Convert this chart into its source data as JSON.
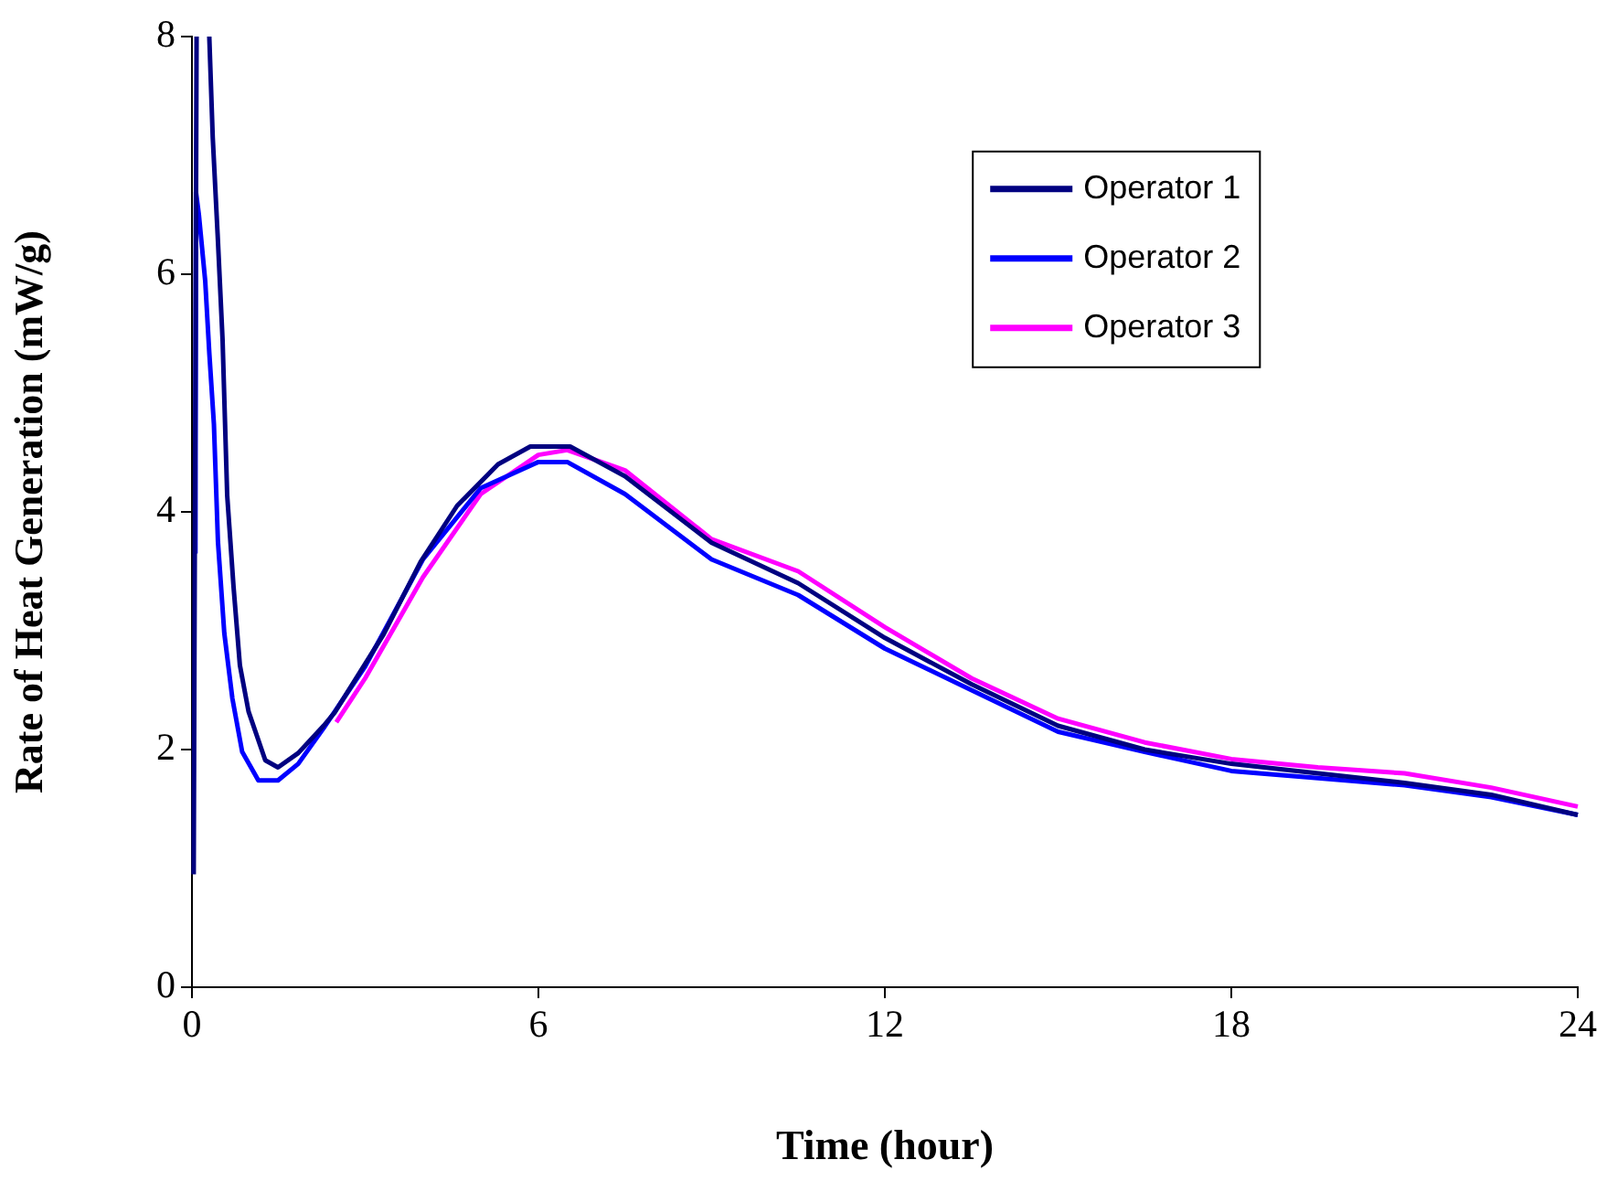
{
  "chart_data": {
    "type": "line",
    "xlabel": "Time (hour)",
    "ylabel": "Rate of Heat Generation (mW/g)",
    "xlim": [
      0,
      24
    ],
    "xticks": [
      0,
      6,
      12,
      18,
      24
    ],
    "ylim": [
      0,
      8
    ],
    "yticks": [
      0,
      2,
      4,
      6,
      8
    ],
    "grid": false,
    "legend": "top right",
    "marker": "none",
    "line_style": "solid",
    "series": [
      {
        "name": "Operator 1",
        "color": "#000080",
        "x": [
          0.03,
          0.08,
          0.2,
          0.3,
          0.36,
          0.45,
          0.53,
          0.61,
          0.72,
          0.83,
          0.98,
          1.27,
          1.49,
          1.84,
          2.28,
          2.47,
          3.32,
          3.96,
          4.59,
          5.3,
          5.86,
          6.55,
          7.5,
          9,
          10.5,
          12,
          13.5,
          15,
          16.5,
          18,
          19.5,
          21,
          22.5,
          24
        ],
        "values": [
          0.95,
          8,
          null,
          8,
          7.15,
          6.28,
          5.45,
          4.14,
          3.37,
          2.71,
          2.32,
          1.91,
          1.85,
          1.97,
          2.2,
          2.31,
          2.97,
          3.58,
          4.05,
          4.4,
          4.55,
          4.55,
          4.3,
          3.74,
          3.4,
          2.94,
          2.55,
          2.2,
          2.0,
          1.88,
          1.8,
          1.72,
          1.62,
          1.45
        ]
      },
      {
        "name": "Operator 2",
        "color": "#0000ff",
        "x": [
          0.06,
          0.07,
          0.12,
          0.23,
          0.3,
          0.38,
          0.45,
          0.56,
          0.7,
          0.87,
          1.15,
          1.49,
          1.84,
          2.28,
          3,
          4,
          5,
          6,
          6.5,
          7.5,
          9,
          10.5,
          12,
          13.5,
          15,
          16.5,
          18,
          19.5,
          21,
          22.5,
          24
        ],
        "values": [
          3.65,
          6.69,
          6.5,
          5.94,
          5.34,
          4.74,
          3.75,
          2.98,
          2.43,
          1.98,
          1.74,
          1.74,
          1.88,
          2.18,
          2.7,
          3.6,
          4.2,
          4.42,
          4.42,
          4.15,
          3.6,
          3.3,
          2.85,
          2.5,
          2.15,
          1.98,
          1.82,
          1.76,
          1.7,
          1.6,
          1.45
        ]
      },
      {
        "name": "Operator 3",
        "color": "#ff00ff",
        "x": [
          2.5,
          3,
          4,
          5,
          6,
          6.5,
          7.5,
          9,
          10.5,
          12,
          13.5,
          15,
          16.5,
          18,
          19.5,
          21,
          22.5,
          24
        ],
        "values": [
          2.23,
          2.6,
          3.45,
          4.15,
          4.48,
          4.52,
          4.35,
          3.77,
          3.5,
          3.03,
          2.6,
          2.26,
          2.06,
          1.92,
          1.85,
          1.8,
          1.68,
          1.52
        ]
      }
    ]
  }
}
